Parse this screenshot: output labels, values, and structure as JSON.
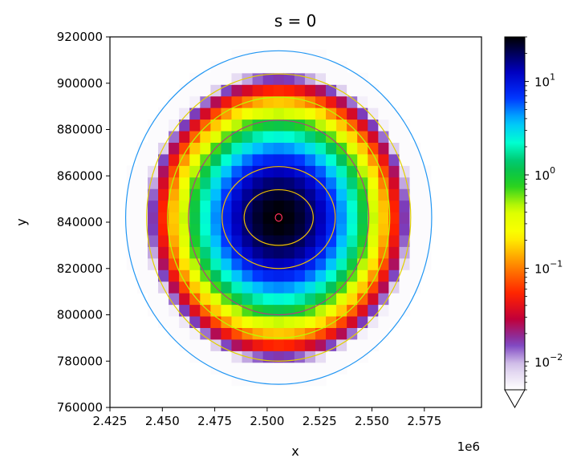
{
  "chart_data": {
    "type": "heatmap",
    "title": "s = 0",
    "xlabel": "x",
    "ylabel": "y",
    "x_offset_label": "1e6",
    "xlim": [
      2.425,
      2.5845
    ],
    "ylim": [
      760000,
      920000
    ],
    "x_ticks": [
      "2.425",
      "2.450",
      "2.475",
      "2.500",
      "2.525",
      "2.550",
      "2.575"
    ],
    "y_ticks": [
      "760000",
      "780000",
      "800000",
      "820000",
      "840000",
      "860000",
      "880000",
      "900000",
      "920000"
    ],
    "colorbar": {
      "scale": "log",
      "colormap": "gist_ncar_r",
      "min": 0.005,
      "max": 30,
      "extend": "min",
      "tick_values": [
        0.01,
        0.1,
        1,
        10
      ],
      "tick_labels": [
        "10",
        "10",
        "10",
        "10"
      ],
      "tick_exponents": [
        "−2",
        "−1",
        "0",
        "1"
      ]
    },
    "grid": {
      "center": [
        2.5055,
        842000
      ],
      "cell_x": 0.005,
      "cell_y": 5000,
      "domain_radius_x": 0.0735,
      "domain_radius_y": 73000,
      "peak_value": 30,
      "scale_x": 0.0155,
      "scale_y": 15500
    },
    "rings": [
      {
        "rx": 0.073,
        "ry": 72000,
        "color": "#2196f3"
      },
      {
        "rx": 0.063,
        "ry": 62000,
        "color": "#e0d000"
      },
      {
        "rx": 0.053,
        "ry": 52000,
        "color": "#b7ff00"
      },
      {
        "rx": 0.043,
        "ry": 42000,
        "color": "#b0407a"
      },
      {
        "rx": 0.027,
        "ry": 22000,
        "color": "#f0c000"
      },
      {
        "rx": 0.0165,
        "ry": 12000,
        "color": "#f0c000"
      },
      {
        "rx": 0.0016,
        "ry": 1600,
        "color": "#ff3060"
      }
    ]
  }
}
